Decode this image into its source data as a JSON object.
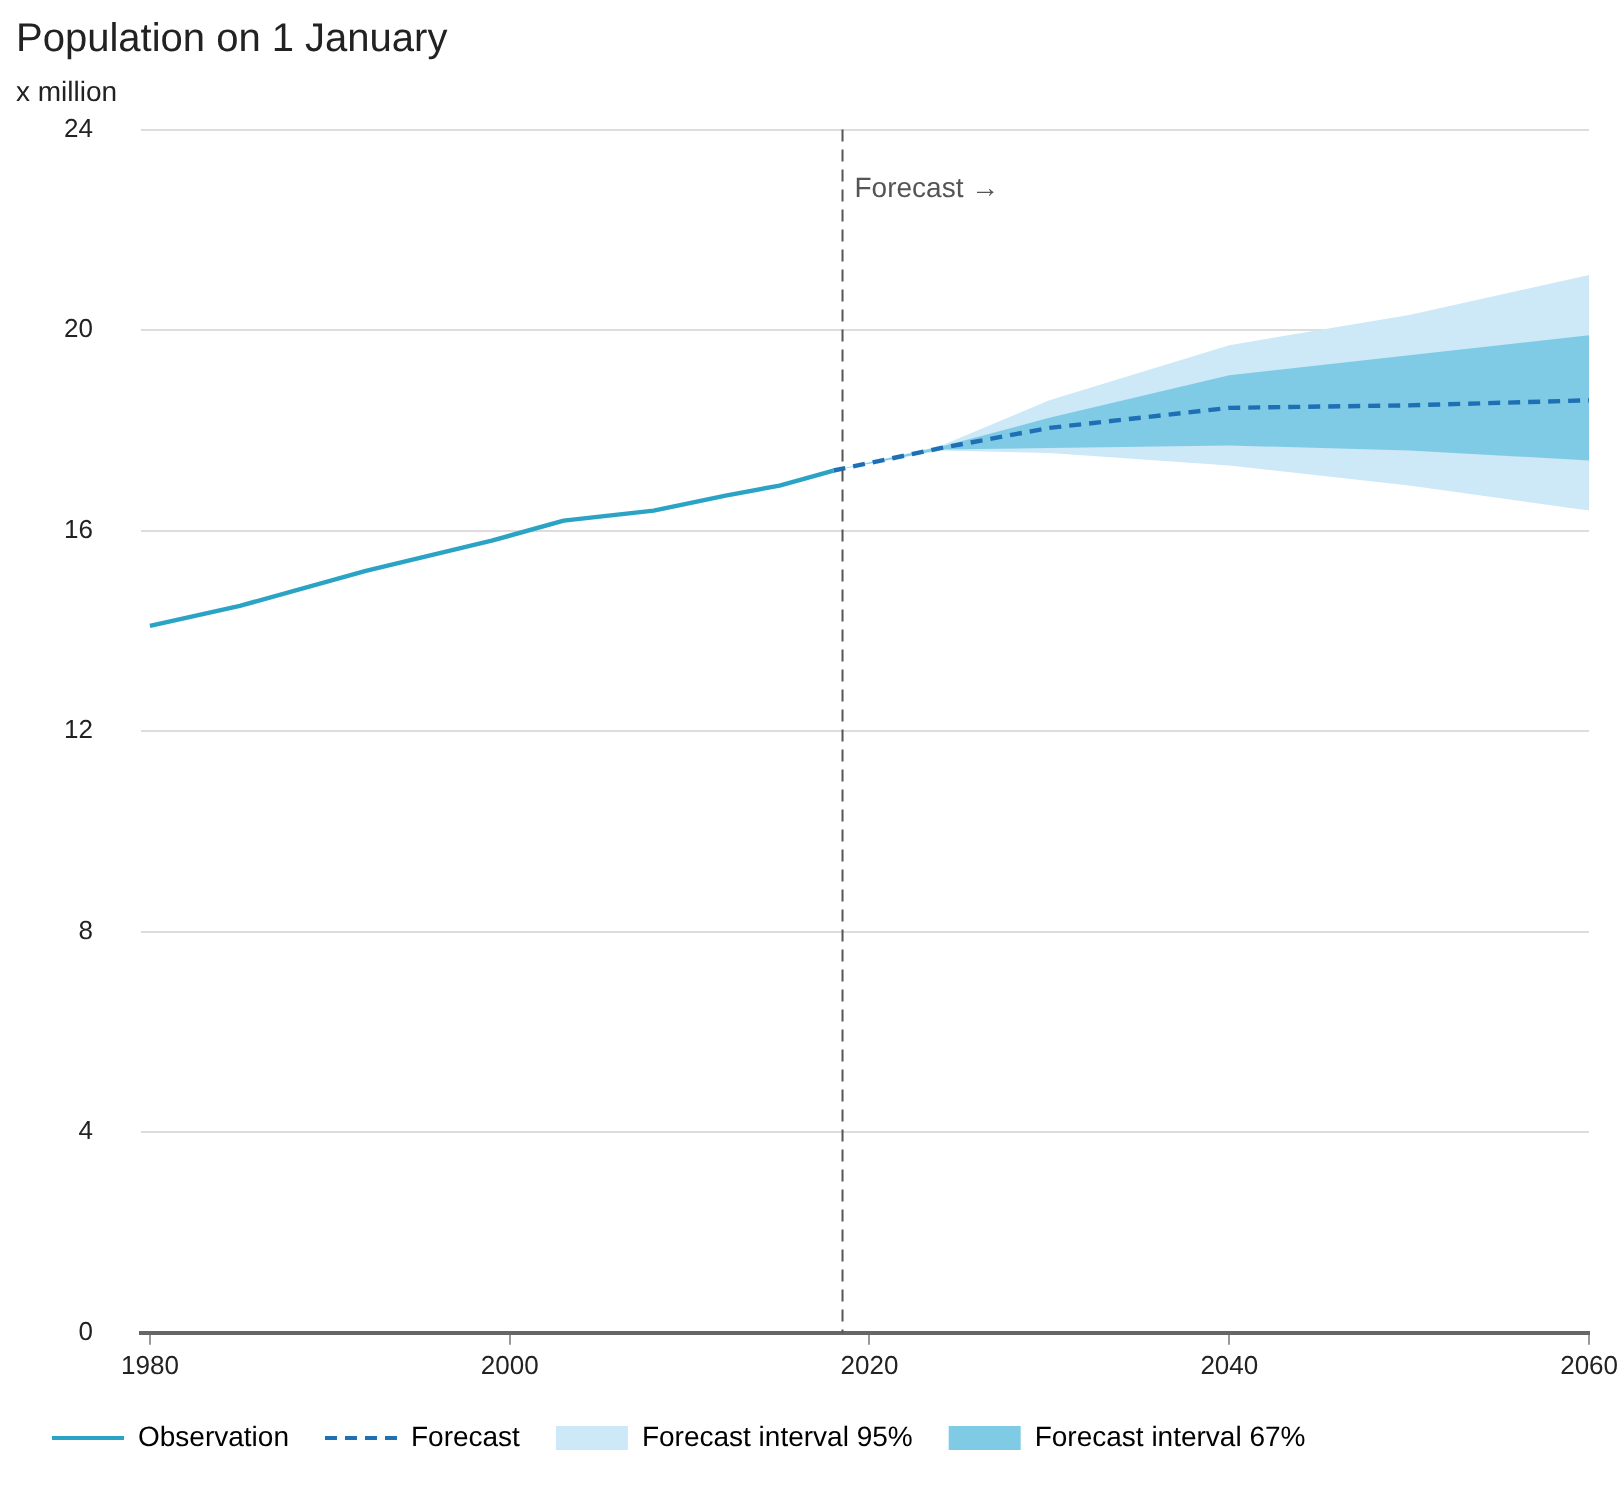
{
  "chart_data": {
    "type": "line",
    "title": "Population on 1 January",
    "ylabel": "x million",
    "xlim": [
      1979.5,
      2060
    ],
    "xticks": [
      1980,
      2000,
      2020,
      2040,
      2060
    ],
    "ylim": [
      0,
      24
    ],
    "yticks": [
      0,
      4,
      8,
      12,
      16,
      20,
      24
    ],
    "grid": "y",
    "legend": "bottom",
    "marker": "none",
    "ref_lines": [
      {
        "axis": "x",
        "value": 2018.5,
        "label": "Forecast →",
        "color": "#555555",
        "line_style": "dashed"
      }
    ],
    "series": [
      {
        "name": "Observation",
        "color": "#2aa3c4",
        "line_style": "solid",
        "x": [
          1980,
          1985,
          1992,
          1999,
          2003,
          2008,
          2012,
          2015,
          2018
        ],
        "values": [
          14.1,
          14.5,
          15.2,
          15.8,
          16.2,
          16.4,
          16.7,
          16.9,
          17.2
        ]
      },
      {
        "name": "Forecast",
        "color": "#1f6fb5",
        "line_style": "dashed",
        "x": [
          2018,
          2024,
          2030,
          2040,
          2050,
          2060
        ],
        "values": [
          17.2,
          17.65,
          18.05,
          18.45,
          18.5,
          18.6
        ]
      },
      {
        "name": "Forecast interval 95%",
        "type": "line",
        "color": "#cde8f7",
        "x": [
          2018,
          2024,
          2030,
          2040,
          2050,
          2060
        ],
        "values": [
          null,
          null,
          null,
          null,
          null,
          null
        ],
        "lower": [
          17.2,
          17.6,
          17.55,
          17.3,
          16.9,
          16.4
        ],
        "upper": [
          17.2,
          17.7,
          18.6,
          19.7,
          20.3,
          21.1
        ]
      },
      {
        "name": "Forecast interval 67%",
        "type": "line",
        "color": "#7fcbe6",
        "x": [
          2018,
          2024,
          2030,
          2040,
          2050,
          2060
        ],
        "values": [
          null,
          null,
          null,
          null,
          null,
          null
        ],
        "lower": [
          17.2,
          17.62,
          17.65,
          17.7,
          17.6,
          17.4
        ],
        "upper": [
          17.2,
          17.68,
          18.25,
          19.1,
          19.5,
          19.9
        ]
      }
    ]
  }
}
